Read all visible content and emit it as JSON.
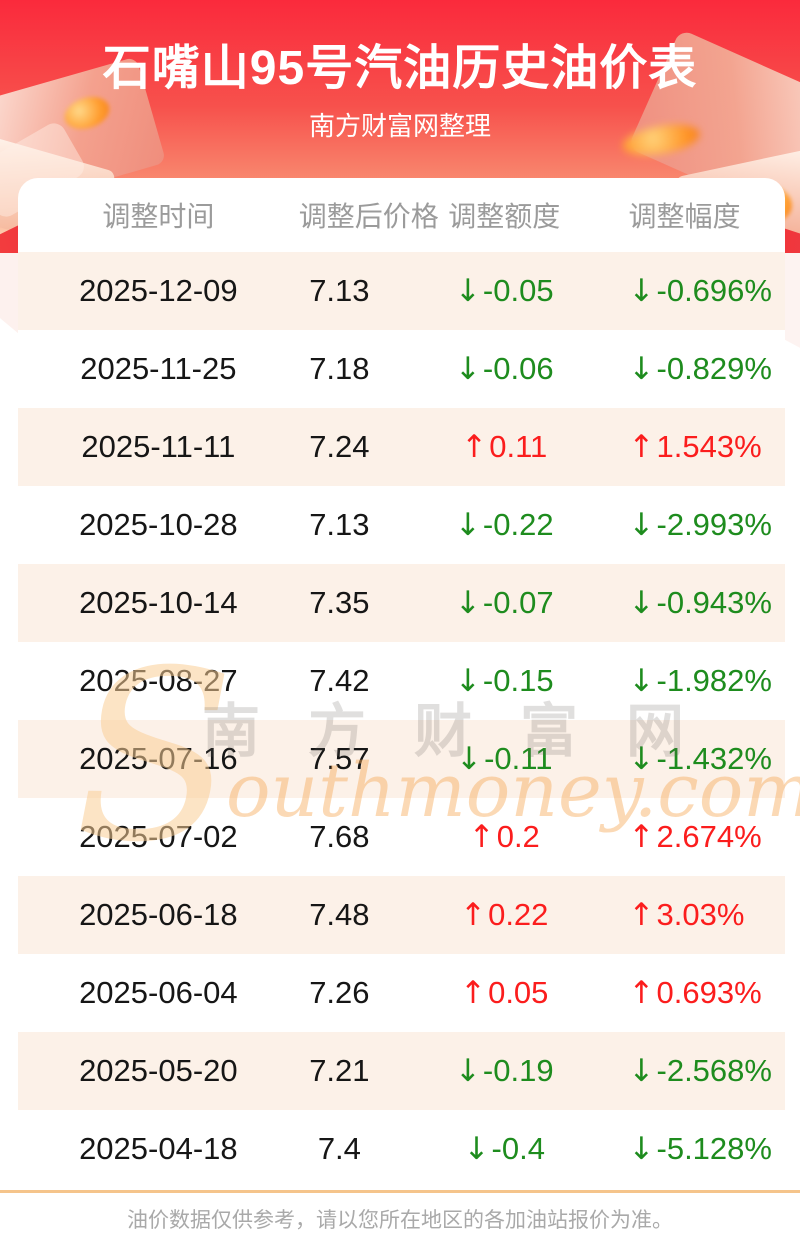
{
  "header": {
    "title": "石嘴山95号汽油历史油价表",
    "subtitle": "南方财富网整理"
  },
  "table": {
    "columns": [
      "调整时间",
      "调整后价格",
      "调整额度",
      "调整幅度"
    ],
    "rows": [
      {
        "date": "2025-12-09",
        "price": "7.13",
        "change": "-0.05",
        "rate": "-0.696%",
        "direction": "down"
      },
      {
        "date": "2025-11-25",
        "price": "7.18",
        "change": "-0.06",
        "rate": "-0.829%",
        "direction": "down"
      },
      {
        "date": "2025-11-11",
        "price": "7.24",
        "change": "0.11",
        "rate": "1.543%",
        "direction": "up"
      },
      {
        "date": "2025-10-28",
        "price": "7.13",
        "change": "-0.22",
        "rate": "-2.993%",
        "direction": "down"
      },
      {
        "date": "2025-10-14",
        "price": "7.35",
        "change": "-0.07",
        "rate": "-0.943%",
        "direction": "down"
      },
      {
        "date": "2025-08-27",
        "price": "7.42",
        "change": "-0.15",
        "rate": "-1.982%",
        "direction": "down"
      },
      {
        "date": "2025-07-16",
        "price": "7.57",
        "change": "-0.11",
        "rate": "-1.432%",
        "direction": "down"
      },
      {
        "date": "2025-07-02",
        "price": "7.68",
        "change": "0.2",
        "rate": "2.674%",
        "direction": "up"
      },
      {
        "date": "2025-06-18",
        "price": "7.48",
        "change": "0.22",
        "rate": "3.03%",
        "direction": "up"
      },
      {
        "date": "2025-06-04",
        "price": "7.26",
        "change": "0.05",
        "rate": "0.693%",
        "direction": "up"
      },
      {
        "date": "2025-05-20",
        "price": "7.21",
        "change": "-0.19",
        "rate": "-2.568%",
        "direction": "down"
      },
      {
        "date": "2025-04-18",
        "price": "7.4",
        "change": "-0.4",
        "rate": "-5.128%",
        "direction": "down"
      }
    ]
  },
  "icons": {
    "up_arrow": "↑",
    "down_arrow": "↓"
  },
  "colors": {
    "up": "#fb1d1d",
    "down": "#1e8c1e",
    "stripe": "#fcf1e8",
    "header_text": "#9b9b9b",
    "divider": "#f5c48b",
    "banner_top": "#fa2a3c"
  },
  "watermark": {
    "swirl": "S",
    "cn": "南方财富网",
    "en": "outhmoney.com"
  },
  "footer": {
    "note": "油价数据仅供参考，请以您所在地区的各加油站报价为准。"
  },
  "chart_data": {
    "type": "table",
    "title": "石嘴山95号汽油历史油价表",
    "subtitle": "南方财富网整理",
    "columns": [
      "调整时间",
      "调整后价格",
      "调整额度",
      "调整幅度"
    ],
    "rows": [
      [
        "2025-12-09",
        "7.13",
        "↓-0.05",
        "↓-0.696%"
      ],
      [
        "2025-11-25",
        "7.18",
        "↓-0.06",
        "↓-0.829%"
      ],
      [
        "2025-11-11",
        "7.24",
        "↑0.11",
        "↑1.543%"
      ],
      [
        "2025-10-28",
        "7.13",
        "↓-0.22",
        "↓-2.993%"
      ],
      [
        "2025-10-14",
        "7.35",
        "↓-0.07",
        "↓-0.943%"
      ],
      [
        "2025-08-27",
        "7.42",
        "↓-0.15",
        "↓-1.982%"
      ],
      [
        "2025-07-16",
        "7.57",
        "↓-0.11",
        "↓-1.432%"
      ],
      [
        "2025-07-02",
        "7.68",
        "↑0.2",
        "↑2.674%"
      ],
      [
        "2025-06-18",
        "7.48",
        "↑0.22",
        "↑3.03%"
      ],
      [
        "2025-06-04",
        "7.26",
        "↑0.05",
        "↑0.693%"
      ],
      [
        "2025-05-20",
        "7.21",
        "↓-0.19",
        "↓-2.568%"
      ],
      [
        "2025-04-18",
        "7.4",
        "↓-0.4",
        "↓-5.128%"
      ]
    ],
    "legend": {
      "up": "red rising price",
      "down": "green falling price"
    }
  }
}
